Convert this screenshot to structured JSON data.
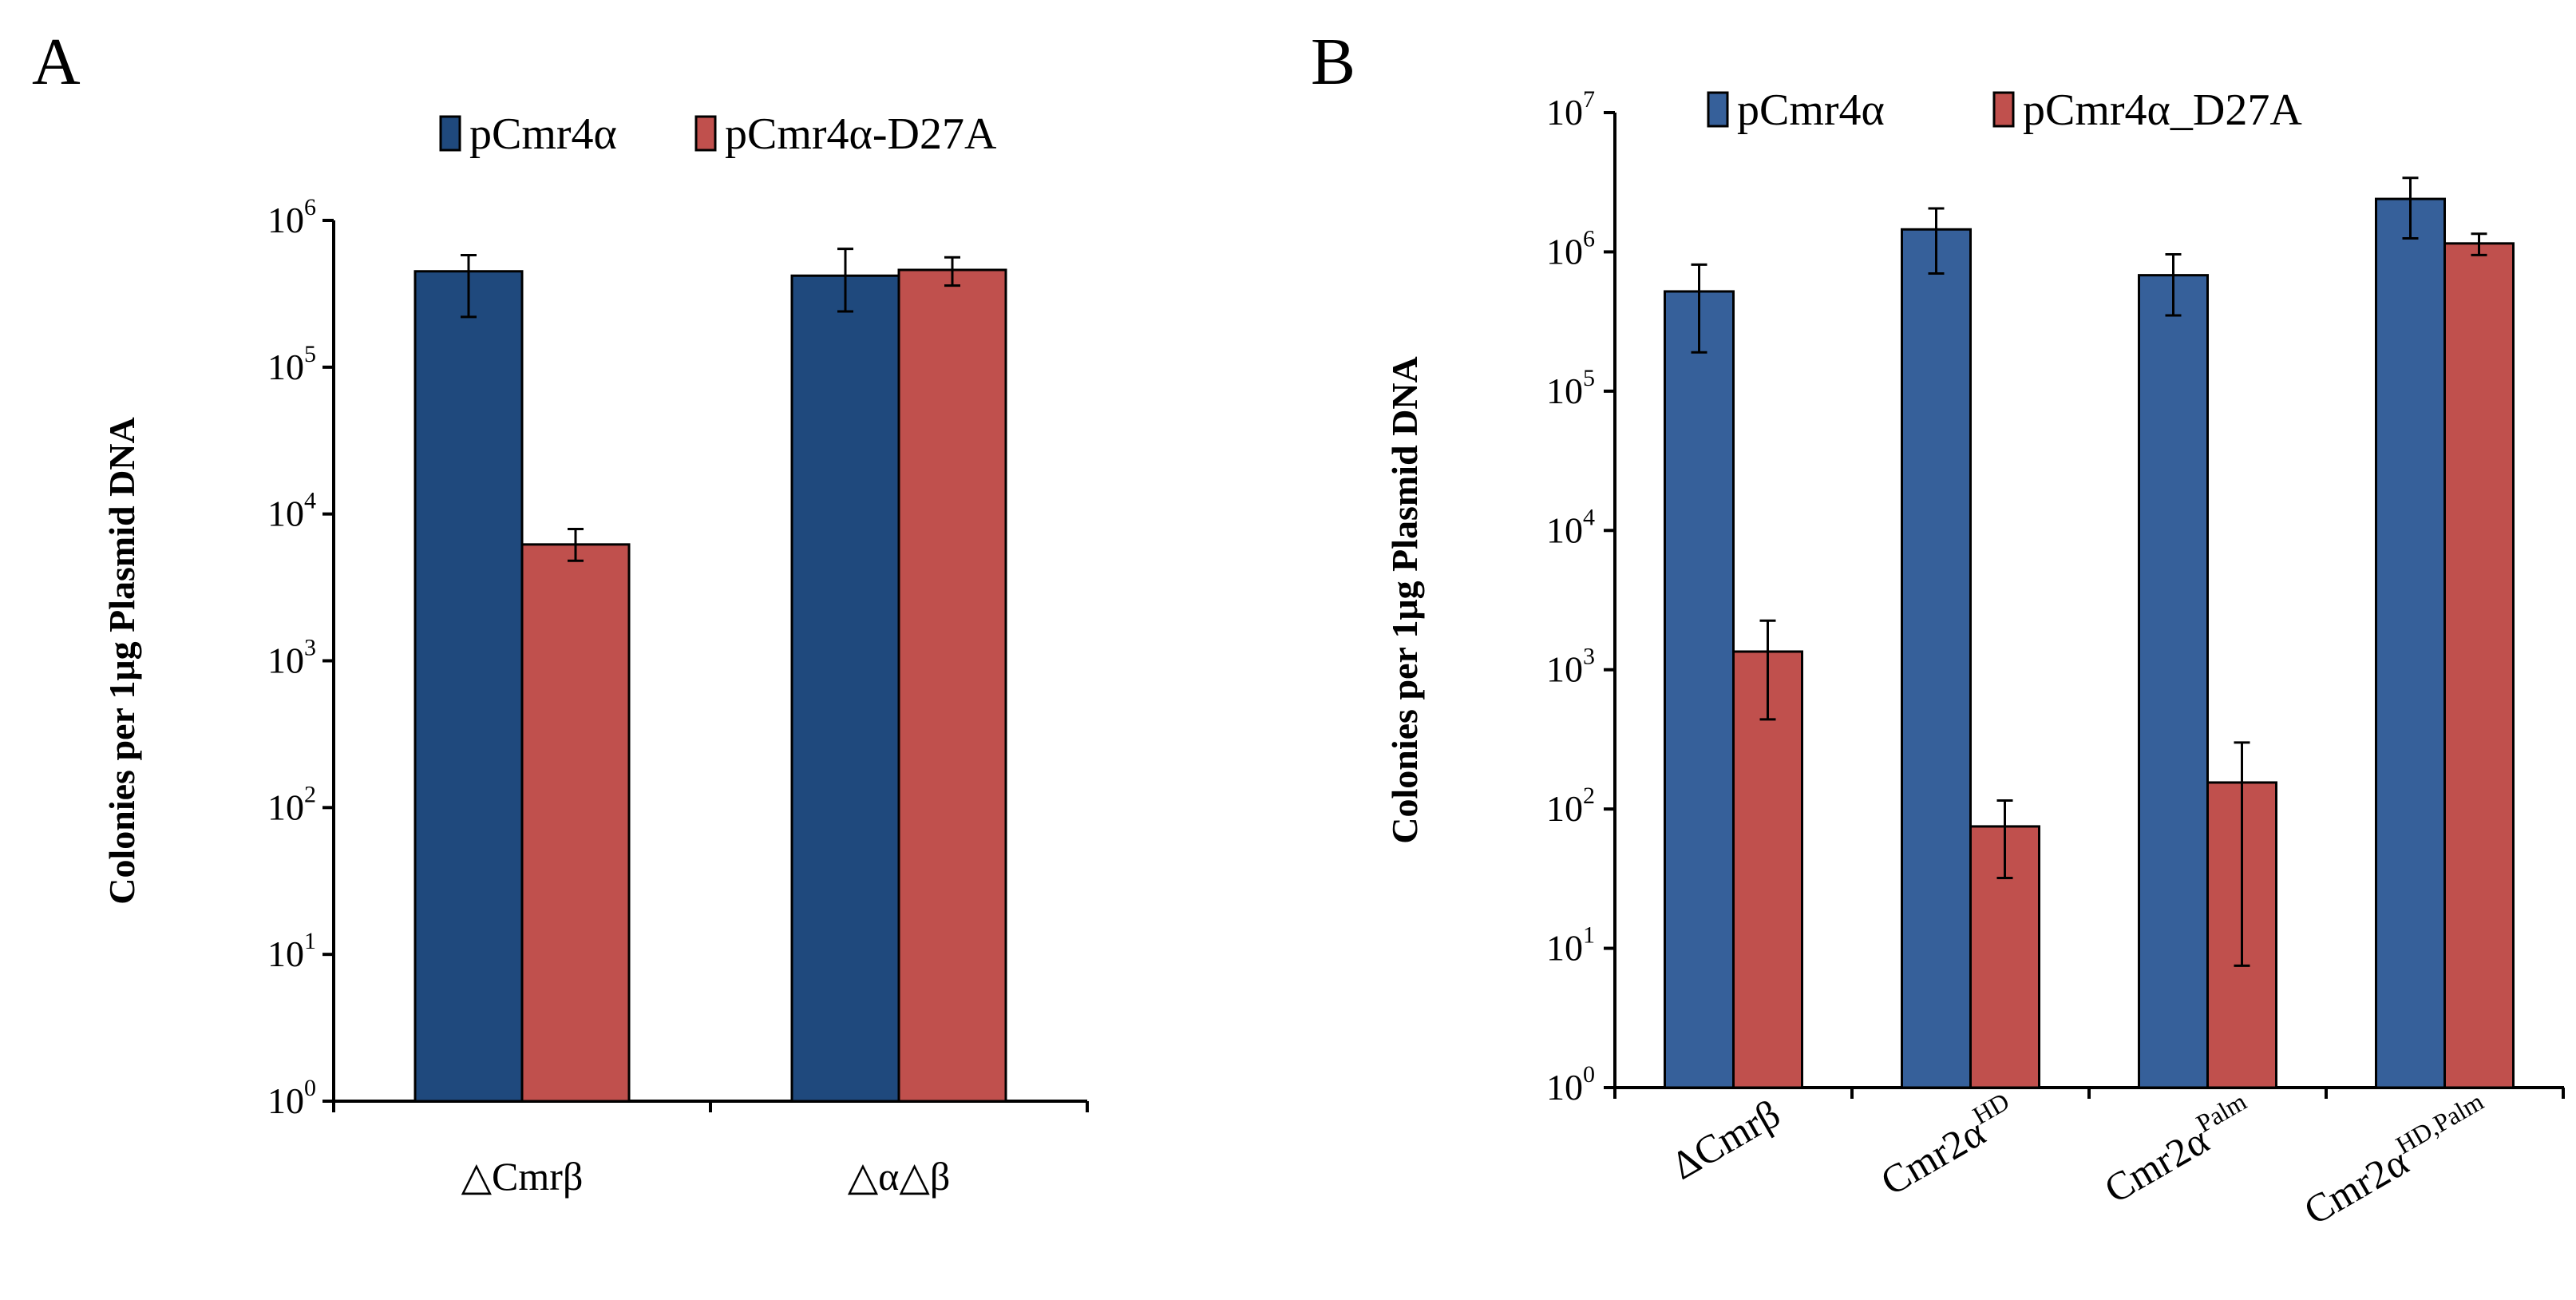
{
  "chart_data": [
    {
      "type": "bar",
      "panel_label": "A",
      "ylabel": "Colonies  per 1μg  Plasmid DNA",
      "yscale": "log",
      "ylim": [
        1,
        1000000
      ],
      "y_ticks": [
        {
          "base": "10",
          "exp": "0"
        },
        {
          "base": "10",
          "exp": "1"
        },
        {
          "base": "10",
          "exp": "2"
        },
        {
          "base": "10",
          "exp": "3"
        },
        {
          "base": "10",
          "exp": "4"
        },
        {
          "base": "10",
          "exp": "5"
        },
        {
          "base": "10",
          "exp": "6"
        }
      ],
      "categories": [
        {
          "base": "△Cmrβ",
          "sup": ""
        },
        {
          "base": "△α△β",
          "sup": ""
        }
      ],
      "legend_position": "top",
      "series": [
        {
          "name": "pCmr4α",
          "color": "#1f497d",
          "values": [
            450000,
            420000
          ],
          "err_low": [
            220000,
            240000
          ],
          "err_high": [
            580000,
            640000
          ]
        },
        {
          "name": "pCmr4α-D27A",
          "color": "#c0504d",
          "values": [
            6200,
            460000
          ],
          "err_low": [
            4800,
            360000
          ],
          "err_high": [
            7900,
            560000
          ]
        }
      ]
    },
    {
      "type": "bar",
      "panel_label": "B",
      "ylabel": "Colonies  per 1μg  Plasmid DNA",
      "yscale": "log",
      "ylim": [
        1,
        10000000
      ],
      "y_ticks": [
        {
          "base": "10",
          "exp": "0"
        },
        {
          "base": "10",
          "exp": "1"
        },
        {
          "base": "10",
          "exp": "2"
        },
        {
          "base": "10",
          "exp": "3"
        },
        {
          "base": "10",
          "exp": "4"
        },
        {
          "base": "10",
          "exp": "5"
        },
        {
          "base": "10",
          "exp": "6"
        },
        {
          "base": "10",
          "exp": "7"
        }
      ],
      "categories": [
        {
          "base": "ΔCmrβ",
          "sup": ""
        },
        {
          "base": "Cmr2α",
          "sup": "HD"
        },
        {
          "base": "Cmr2α",
          "sup": "Palm"
        },
        {
          "base": "Cmr2α",
          "sup": "HD,Palm"
        }
      ],
      "legend_position": "top",
      "series": [
        {
          "name": "pCmr4α",
          "color": "#36609a",
          "values": [
            520000,
            1450000,
            680000,
            2400000
          ],
          "err_low": [
            190000,
            700000,
            350000,
            1250000
          ],
          "err_high": [
            810000,
            2050000,
            960000,
            3400000
          ]
        },
        {
          "name": "pCmr4α_D27A",
          "color": "#c0504d",
          "values": [
            1350,
            75,
            155,
            1150000
          ],
          "err_low": [
            440,
            32,
            7.5,
            950000
          ],
          "err_high": [
            2250,
            115,
            300,
            1350000
          ]
        }
      ]
    }
  ]
}
